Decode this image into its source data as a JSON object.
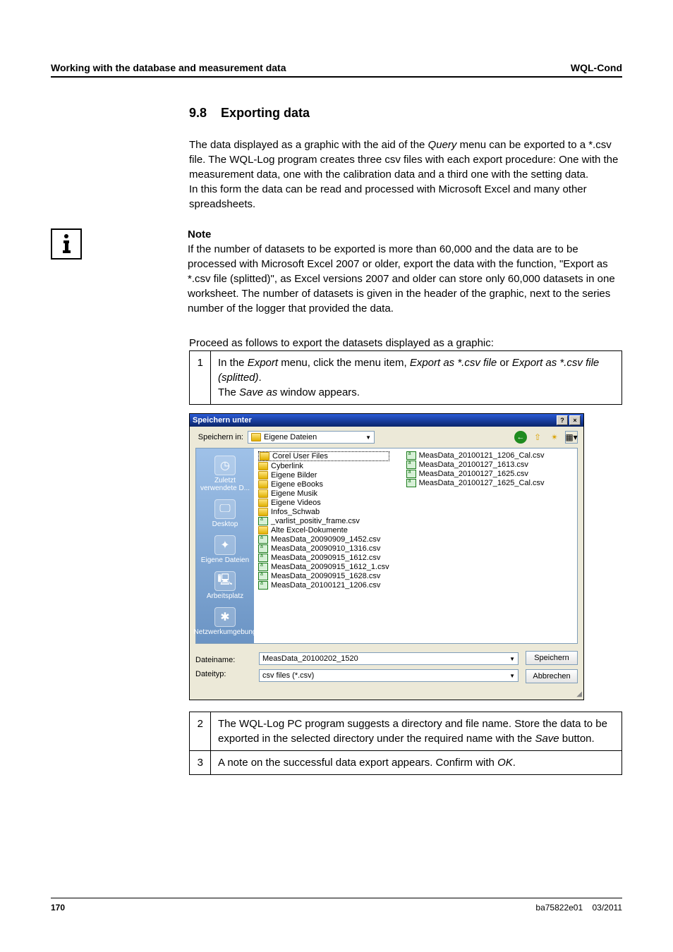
{
  "header": {
    "left": "Working with the database and measurement data",
    "right": "WQL-Cond"
  },
  "section": {
    "number": "9.8",
    "title": "Exporting data"
  },
  "intro": {
    "p1a": "The data displayed as a graphic with the aid of the ",
    "query": "Query",
    "p1b": " menu can be exported to a *.csv file. The WQL-Log program creates three csv files with each export procedure: One with the measurement data, one with the calibration data and a third one with the setting data.",
    "p2": "In this form the data can be read and processed with Microsoft Excel and many other spreadsheets."
  },
  "note": {
    "title": "Note",
    "text": "If the number of datasets to be exported is more than 60,000 and the data are to be processed with Microsoft Excel 2007 or older, export the data with the function, \"Export as *.csv file (splitted)\", as Excel versions 2007 and older can store only 60,000 datasets in one worksheet. The number of datasets is given in the header of the graphic, next to the series number of the logger that provided the data."
  },
  "proceed": "Proceed as follows to export the datasets displayed as a graphic:",
  "step1": {
    "num": "1",
    "a": "In the ",
    "export": "Export",
    "b": " menu, click the menu item, ",
    "item1": "Export as *.csv file",
    "or": " or ",
    "item2": "Export as *.csv file (splitted)",
    "dot": ".",
    "line2a": "The ",
    "saveas": "Save as",
    "line2b": " window appears."
  },
  "dialog": {
    "title": "Speichern unter",
    "help": "?",
    "close": "×",
    "save_in_label": "Speichern in:",
    "save_in_value": "Eigene Dateien",
    "places": {
      "recent": "Zuletzt verwendete D...",
      "desktop": "Desktop",
      "mydocs": "Eigene Dateien",
      "mycomputer": "Arbeitsplatz",
      "network": "Netzwerkumgebung"
    },
    "col1": [
      {
        "t": "folder",
        "n": "Corel User Files",
        "sel": true
      },
      {
        "t": "folder",
        "n": "Cyberlink"
      },
      {
        "t": "folder",
        "n": "Eigene Bilder"
      },
      {
        "t": "folder",
        "n": "Eigene eBooks"
      },
      {
        "t": "folder",
        "n": "Eigene Musik"
      },
      {
        "t": "folder",
        "n": "Eigene Videos"
      },
      {
        "t": "folder",
        "n": "Infos_Schwab"
      },
      {
        "t": "csv",
        "n": "_varlist_positiv_frame.csv"
      },
      {
        "t": "folder",
        "n": "Alte Excel-Dokumente"
      },
      {
        "t": "csv",
        "n": "MeasData_20090909_1452.csv"
      },
      {
        "t": "csv",
        "n": "MeasData_20090910_1316.csv"
      },
      {
        "t": "csv",
        "n": "MeasData_20090915_1612.csv"
      },
      {
        "t": "csv",
        "n": "MeasData_20090915_1612_1.csv"
      },
      {
        "t": "csv",
        "n": "MeasData_20090915_1628.csv"
      },
      {
        "t": "csv",
        "n": "MeasData_20100121_1206.csv"
      }
    ],
    "col2": [
      {
        "t": "csv",
        "n": "MeasData_20100121_1206_Cal.csv"
      },
      {
        "t": "csv",
        "n": "MeasData_20100127_1613.csv"
      },
      {
        "t": "csv",
        "n": "MeasData_20100127_1625.csv"
      },
      {
        "t": "csv",
        "n": "MeasData_20100127_1625_Cal.csv"
      }
    ],
    "filename_label": "Dateiname:",
    "filename_value": "MeasData_20100202_1520",
    "filetype_label": "Dateityp:",
    "filetype_value": "csv files (*.csv)",
    "btn_save": "Speichern",
    "btn_cancel": "Abbrechen"
  },
  "step2": {
    "num": "2",
    "a": "The WQL-Log PC program suggests a directory and file name. Store the data to be exported in the selected directory under the required name with the ",
    "save": "Save",
    "b": " button."
  },
  "step3": {
    "num": "3",
    "a": "A note on the successful data export appears. Confirm with ",
    "ok": "OK",
    "b": "."
  },
  "footer": {
    "page": "170",
    "doc": "ba75822e01",
    "date": "03/2011"
  }
}
